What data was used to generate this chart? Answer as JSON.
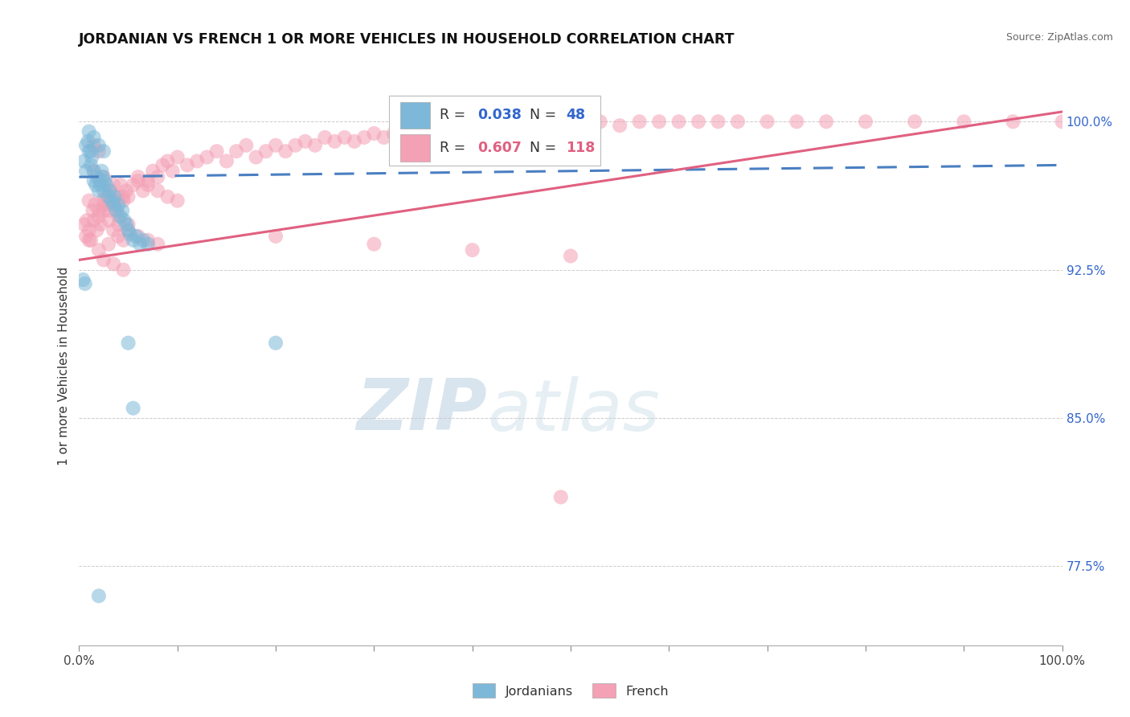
{
  "title": "JORDANIAN VS FRENCH 1 OR MORE VEHICLES IN HOUSEHOLD CORRELATION CHART",
  "source": "Source: ZipAtlas.com",
  "ylabel": "1 or more Vehicles in Household",
  "xlim": [
    0.0,
    1.0
  ],
  "ylim": [
    0.735,
    1.018
  ],
  "yticks": [
    0.775,
    0.85,
    0.925,
    1.0
  ],
  "ytick_labels": [
    "77.5%",
    "85.0%",
    "92.5%",
    "100.0%"
  ],
  "xticks": [
    0.0,
    0.1,
    0.2,
    0.3,
    0.4,
    0.5,
    0.6,
    0.7,
    0.8,
    0.9,
    1.0
  ],
  "xtick_labels": [
    "0.0%",
    "",
    "",
    "",
    "",
    "",
    "",
    "",
    "",
    "",
    "100.0%"
  ],
  "jordanian_color": "#7db8d8",
  "french_color": "#f4a0b5",
  "jordanian_R": 0.038,
  "jordanian_N": 48,
  "french_R": 0.607,
  "french_N": 118,
  "jordanian_trend_x": [
    0.0,
    1.0
  ],
  "jordanian_trend_y": [
    0.972,
    0.978
  ],
  "french_trend_x": [
    0.0,
    1.0
  ],
  "french_trend_y": [
    0.93,
    1.005
  ],
  "watermark_zip": "ZIP",
  "watermark_atlas": "atlas",
  "jordanian_x": [
    0.005,
    0.007,
    0.009,
    0.01,
    0.012,
    0.013,
    0.015,
    0.015,
    0.017,
    0.018,
    0.02,
    0.021,
    0.022,
    0.023,
    0.024,
    0.025,
    0.026,
    0.028,
    0.03,
    0.031,
    0.033,
    0.035,
    0.036,
    0.038,
    0.04,
    0.042,
    0.044,
    0.046,
    0.048,
    0.05,
    0.052,
    0.055,
    0.058,
    0.062,
    0.065,
    0.07,
    0.01,
    0.015,
    0.02,
    0.025,
    0.007,
    0.012,
    0.004,
    0.006,
    0.05,
    0.2,
    0.055,
    0.02
  ],
  "jordanian_y": [
    0.98,
    0.975,
    0.99,
    0.985,
    0.978,
    0.982,
    0.975,
    0.97,
    0.968,
    0.972,
    0.965,
    0.97,
    0.968,
    0.975,
    0.972,
    0.965,
    0.97,
    0.968,
    0.962,
    0.965,
    0.96,
    0.958,
    0.962,
    0.955,
    0.958,
    0.952,
    0.955,
    0.95,
    0.948,
    0.945,
    0.943,
    0.94,
    0.942,
    0.938,
    0.94,
    0.938,
    0.995,
    0.992,
    0.988,
    0.985,
    0.988,
    0.985,
    0.92,
    0.918,
    0.888,
    0.888,
    0.855,
    0.76
  ],
  "french_x": [
    0.005,
    0.007,
    0.008,
    0.01,
    0.012,
    0.014,
    0.015,
    0.016,
    0.018,
    0.02,
    0.022,
    0.024,
    0.025,
    0.027,
    0.03,
    0.032,
    0.035,
    0.038,
    0.04,
    0.042,
    0.045,
    0.048,
    0.05,
    0.055,
    0.06,
    0.065,
    0.07,
    0.075,
    0.08,
    0.085,
    0.09,
    0.095,
    0.1,
    0.11,
    0.12,
    0.13,
    0.14,
    0.15,
    0.16,
    0.17,
    0.18,
    0.19,
    0.2,
    0.21,
    0.22,
    0.23,
    0.24,
    0.25,
    0.26,
    0.27,
    0.28,
    0.29,
    0.3,
    0.31,
    0.32,
    0.33,
    0.35,
    0.37,
    0.39,
    0.41,
    0.43,
    0.45,
    0.47,
    0.49,
    0.51,
    0.53,
    0.55,
    0.57,
    0.59,
    0.61,
    0.63,
    0.65,
    0.67,
    0.7,
    0.73,
    0.76,
    0.8,
    0.85,
    0.9,
    0.95,
    1.0,
    0.01,
    0.02,
    0.03,
    0.015,
    0.025,
    0.035,
    0.045,
    0.01,
    0.02,
    0.03,
    0.04,
    0.05,
    0.06,
    0.07,
    0.08,
    0.025,
    0.035,
    0.045,
    0.025,
    0.03,
    0.04,
    0.05,
    0.035,
    0.04,
    0.045,
    0.015,
    0.02,
    0.06,
    0.07,
    0.08,
    0.09,
    0.1,
    0.49,
    0.2,
    0.3,
    0.4,
    0.5
  ],
  "french_y": [
    0.948,
    0.942,
    0.95,
    0.945,
    0.94,
    0.955,
    0.95,
    0.958,
    0.945,
    0.952,
    0.948,
    0.96,
    0.955,
    0.962,
    0.958,
    0.965,
    0.96,
    0.955,
    0.962,
    0.968,
    0.96,
    0.965,
    0.962,
    0.968,
    0.972,
    0.965,
    0.97,
    0.975,
    0.972,
    0.978,
    0.98,
    0.975,
    0.982,
    0.978,
    0.98,
    0.982,
    0.985,
    0.98,
    0.985,
    0.988,
    0.982,
    0.985,
    0.988,
    0.985,
    0.988,
    0.99,
    0.988,
    0.992,
    0.99,
    0.992,
    0.99,
    0.992,
    0.994,
    0.992,
    0.994,
    0.996,
    0.995,
    0.996,
    0.998,
    0.996,
    0.998,
    1.0,
    0.998,
    1.0,
    0.998,
    1.0,
    0.998,
    1.0,
    1.0,
    1.0,
    1.0,
    1.0,
    1.0,
    1.0,
    1.0,
    1.0,
    1.0,
    1.0,
    1.0,
    1.0,
    1.0,
    0.94,
    0.935,
    0.938,
    0.975,
    0.972,
    0.968,
    0.962,
    0.96,
    0.955,
    0.95,
    0.948,
    0.945,
    0.942,
    0.94,
    0.938,
    0.93,
    0.928,
    0.925,
    0.958,
    0.955,
    0.952,
    0.948,
    0.945,
    0.942,
    0.94,
    0.988,
    0.985,
    0.97,
    0.968,
    0.965,
    0.962,
    0.96,
    0.81,
    0.942,
    0.938,
    0.935,
    0.932
  ]
}
